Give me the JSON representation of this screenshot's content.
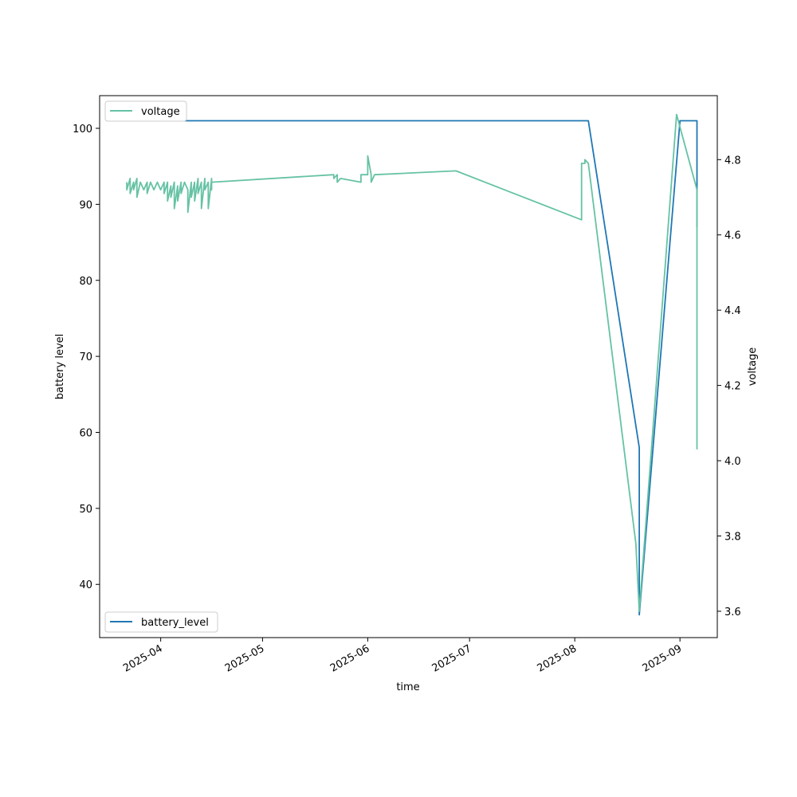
{
  "chart_data": {
    "type": "line",
    "xlabel": "time",
    "ylabel_left": "battery level",
    "ylabel_right": "voltage",
    "xlim": [
      "2025-03-14",
      "2025-09-12"
    ],
    "ylim_left": [
      33,
      104.3
    ],
    "ylim_right": [
      3.53,
      4.97
    ],
    "x_ticks": [
      "2025-04",
      "2025-05",
      "2025-06",
      "2025-07",
      "2025-08",
      "2025-09"
    ],
    "y_ticks_left": [
      40,
      50,
      60,
      70,
      80,
      90,
      100
    ],
    "y_ticks_right": [
      3.6,
      3.8,
      4.0,
      4.2,
      4.4,
      4.6,
      4.8
    ],
    "grid": false,
    "series": [
      {
        "name": "battery_level",
        "axis": "left",
        "color": "#1f77b4",
        "legend": "lower-left",
        "points": [
          [
            "2025-03-22",
            101
          ],
          [
            "2025-08-05",
            101
          ],
          [
            "2025-08-20",
            58
          ],
          [
            "2025-08-20",
            36
          ],
          [
            "2025-09-01",
            101
          ],
          [
            "2025-09-06",
            101
          ],
          [
            "2025-09-06",
            87
          ]
        ]
      },
      {
        "name": "voltage",
        "axis": "right",
        "color": "#66c2a5",
        "legend": "upper-left",
        "points": [
          [
            "2025-03-22",
            4.74
          ],
          [
            "2025-03-22",
            4.72
          ],
          [
            "2025-03-23",
            4.75
          ],
          [
            "2025-03-23",
            4.71
          ],
          [
            "2025-03-24",
            4.74
          ],
          [
            "2025-03-24",
            4.72
          ],
          [
            "2025-03-25",
            4.75
          ],
          [
            "2025-03-25",
            4.7
          ],
          [
            "2025-03-26",
            4.74
          ],
          [
            "2025-03-27",
            4.72
          ],
          [
            "2025-03-28",
            4.74
          ],
          [
            "2025-03-28",
            4.71
          ],
          [
            "2025-03-29",
            4.74
          ],
          [
            "2025-03-30",
            4.72
          ],
          [
            "2025-03-31",
            4.74
          ],
          [
            "2025-04-01",
            4.72
          ],
          [
            "2025-04-02",
            4.74
          ],
          [
            "2025-04-02",
            4.71
          ],
          [
            "2025-04-03",
            4.74
          ],
          [
            "2025-04-03",
            4.69
          ],
          [
            "2025-04-04",
            4.73
          ],
          [
            "2025-04-04",
            4.7
          ],
          [
            "2025-04-05",
            4.74
          ],
          [
            "2025-04-05",
            4.67
          ],
          [
            "2025-04-06",
            4.73
          ],
          [
            "2025-04-06",
            4.69
          ],
          [
            "2025-04-07",
            4.74
          ],
          [
            "2025-04-07",
            4.71
          ],
          [
            "2025-04-08",
            4.74
          ],
          [
            "2025-04-09",
            4.72
          ],
          [
            "2025-04-09",
            4.66
          ],
          [
            "2025-04-10",
            4.74
          ],
          [
            "2025-04-10",
            4.7
          ],
          [
            "2025-04-11",
            4.74
          ],
          [
            "2025-04-11",
            4.69
          ],
          [
            "2025-04-12",
            4.75
          ],
          [
            "2025-04-12",
            4.71
          ],
          [
            "2025-04-13",
            4.74
          ],
          [
            "2025-04-13",
            4.67
          ],
          [
            "2025-04-14",
            4.75
          ],
          [
            "2025-04-14",
            4.72
          ],
          [
            "2025-04-15",
            4.74
          ],
          [
            "2025-04-15",
            4.67
          ],
          [
            "2025-04-16",
            4.75
          ],
          [
            "2025-04-16",
            4.72
          ],
          [
            "2025-04-16",
            4.74
          ],
          [
            "2025-05-22",
            4.76
          ],
          [
            "2025-05-22",
            4.75
          ],
          [
            "2025-05-23",
            4.76
          ],
          [
            "2025-05-23",
            4.74
          ],
          [
            "2025-05-24",
            4.75
          ],
          [
            "2025-05-30",
            4.74
          ],
          [
            "2025-05-30",
            4.76
          ],
          [
            "2025-06-01",
            4.76
          ],
          [
            "2025-06-01",
            4.81
          ],
          [
            "2025-06-02",
            4.76
          ],
          [
            "2025-06-02",
            4.74
          ],
          [
            "2025-06-03",
            4.76
          ],
          [
            "2025-06-27",
            4.77
          ],
          [
            "2025-08-03",
            4.64
          ],
          [
            "2025-08-03",
            4.79
          ],
          [
            "2025-08-04",
            4.79
          ],
          [
            "2025-08-04",
            4.8
          ],
          [
            "2025-08-05",
            4.79
          ],
          [
            "2025-08-19",
            3.78
          ],
          [
            "2025-08-20",
            3.6
          ],
          [
            "2025-08-31",
            4.92
          ],
          [
            "2025-09-06",
            4.72
          ],
          [
            "2025-09-06",
            4.03
          ]
        ]
      }
    ]
  }
}
